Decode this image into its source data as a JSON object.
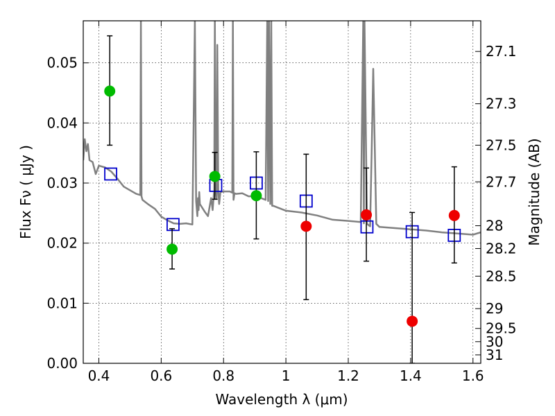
{
  "chart_data": {
    "type": "scatter",
    "xlabel": "Wavelength  λ (μm)",
    "ylabel": "Flux  Fν  ( μJy )",
    "ylabel_right": "Magnitude (AB)",
    "xlim": [
      0.35,
      1.625
    ],
    "ylim": [
      0.0,
      0.057
    ],
    "grid": true,
    "x_ticks": [
      {
        "value": 0.4,
        "label": "0.4"
      },
      {
        "value": 0.6,
        "label": "0.6"
      },
      {
        "value": 0.8,
        "label": "0.8"
      },
      {
        "value": 1.0,
        "label": "1"
      },
      {
        "value": 1.2,
        "label": "1.2"
      },
      {
        "value": 1.4,
        "label": "1.4"
      },
      {
        "value": 1.6,
        "label": "1.6"
      }
    ],
    "y_ticks": [
      {
        "value": 0.0,
        "label": "0.00"
      },
      {
        "value": 0.01,
        "label": "0.01"
      },
      {
        "value": 0.02,
        "label": "0.02"
      },
      {
        "value": 0.03,
        "label": "0.03"
      },
      {
        "value": 0.04,
        "label": "0.04"
      },
      {
        "value": 0.05,
        "label": "0.05"
      }
    ],
    "y_right_ticks": [
      {
        "flux": 0.0519,
        "label": "27.1"
      },
      {
        "flux": 0.0432,
        "label": "27.3"
      },
      {
        "flux": 0.0363,
        "label": "27.5"
      },
      {
        "flux": 0.0302,
        "label": "27.7"
      },
      {
        "flux": 0.0229,
        "label": "28"
      },
      {
        "flux": 0.0191,
        "label": "28.2"
      },
      {
        "flux": 0.0145,
        "label": "28.5"
      },
      {
        "flux": 0.0091,
        "label": "29"
      },
      {
        "flux": 0.0058,
        "label": "29.5"
      },
      {
        "flux": 0.0036,
        "label": "30"
      },
      {
        "flux": 0.0014,
        "label": "31"
      }
    ],
    "series": [
      {
        "kind": "model",
        "color": "#808080",
        "x": [
          0.35,
          0.355,
          0.36,
          0.365,
          0.37,
          0.38,
          0.39,
          0.4,
          0.42,
          0.44,
          0.46,
          0.48,
          0.5,
          0.52,
          0.533,
          0.535,
          0.537,
          0.54,
          0.56,
          0.58,
          0.6,
          0.62,
          0.64,
          0.66,
          0.68,
          0.7,
          0.708,
          0.712,
          0.716,
          0.718,
          0.72,
          0.722,
          0.724,
          0.74,
          0.75,
          0.76,
          0.765,
          0.77,
          0.772,
          0.775,
          0.778,
          0.78,
          0.783,
          0.786,
          0.79,
          0.8,
          0.82,
          0.828,
          0.83,
          0.832,
          0.835,
          0.84,
          0.86,
          0.88,
          0.9,
          0.92,
          0.935,
          0.94,
          0.943,
          0.946,
          0.95,
          0.953,
          0.956,
          0.96,
          0.98,
          1.0,
          1.05,
          1.1,
          1.15,
          1.2,
          1.24,
          1.248,
          1.25,
          1.252,
          1.26,
          1.27,
          1.275,
          1.28,
          1.29,
          1.3,
          1.35,
          1.4,
          1.45,
          1.5,
          1.55,
          1.6,
          1.625
        ],
        "y": [
          0.0338,
          0.0373,
          0.0353,
          0.0365,
          0.0338,
          0.0335,
          0.0315,
          0.0329,
          0.0326,
          0.0319,
          0.0307,
          0.0294,
          0.0288,
          0.0282,
          0.028,
          0.057,
          0.0278,
          0.0272,
          0.0264,
          0.0257,
          0.0244,
          0.0238,
          0.0233,
          0.0232,
          0.0233,
          0.0231,
          0.057,
          0.027,
          0.0245,
          0.0275,
          0.0255,
          0.0285,
          0.0265,
          0.0252,
          0.0245,
          0.0275,
          0.0255,
          0.0289,
          0.057,
          0.029,
          0.0275,
          0.053,
          0.0288,
          0.0265,
          0.0285,
          0.0286,
          0.0286,
          0.0284,
          0.057,
          0.0272,
          0.0283,
          0.0282,
          0.0283,
          0.0278,
          0.0278,
          0.0275,
          0.0272,
          0.057,
          0.027,
          0.057,
          0.0265,
          0.057,
          0.0262,
          0.0262,
          0.0258,
          0.0254,
          0.0251,
          0.0246,
          0.0239,
          0.0237,
          0.0235,
          0.057,
          0.0233,
          0.057,
          0.0232,
          0.0228,
          0.035,
          0.049,
          0.0232,
          0.0227,
          0.0225,
          0.0223,
          0.0221,
          0.0218,
          0.0216,
          0.0214,
          0.0218
        ]
      },
      {
        "kind": "model-points",
        "marker": "open-square",
        "color": "#0000cc",
        "x": [
          0.438,
          0.638,
          0.775,
          0.905,
          1.065,
          1.26,
          1.405,
          1.54
        ],
        "y": [
          0.0315,
          0.0231,
          0.0296,
          0.03,
          0.027,
          0.0227,
          0.0219,
          0.0213
        ]
      },
      {
        "kind": "observed",
        "marker": "filled-circle",
        "color": "#00bb00",
        "x": [
          0.435,
          0.635,
          0.772,
          0.905
        ],
        "y": [
          0.0453,
          0.019,
          0.0311,
          0.0279
        ],
        "yerr_low": [
          0.0363,
          0.0157,
          0.0273,
          0.0207
        ],
        "yerr_high": [
          0.0545,
          0.0224,
          0.0351,
          0.0352
        ]
      },
      {
        "kind": "observed",
        "marker": "filled-circle",
        "color": "#ee0000",
        "x": [
          1.065,
          1.258,
          1.405,
          1.54
        ],
        "y": [
          0.0228,
          0.0247,
          0.007,
          0.0246
        ],
        "yerr_low": [
          0.0106,
          0.017,
          0.0,
          0.0167
        ],
        "yerr_high": [
          0.0348,
          0.0325,
          0.0251,
          0.0327
        ]
      }
    ]
  }
}
